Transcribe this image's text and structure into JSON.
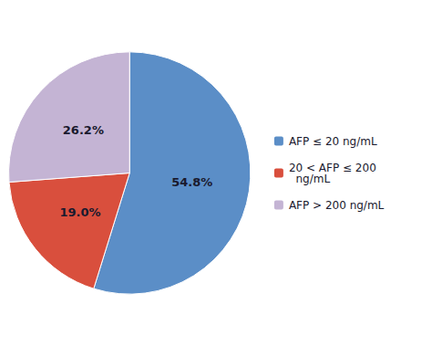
{
  "chart_data": {
    "type": "pie",
    "categories": [
      "AFP ≤ 20 ng/mL",
      "20 < AFP ≤ 200\n  ng/mL",
      "AFP > 200 ng/mL"
    ],
    "values": [
      54.8,
      19.0,
      26.2
    ],
    "value_labels": [
      "54.8%",
      "19.0%",
      "26.2%"
    ],
    "colors": [
      "#5B8EC7",
      "#D94F3D",
      "#C4B4D4"
    ],
    "data_labels": true,
    "legend": "right"
  }
}
